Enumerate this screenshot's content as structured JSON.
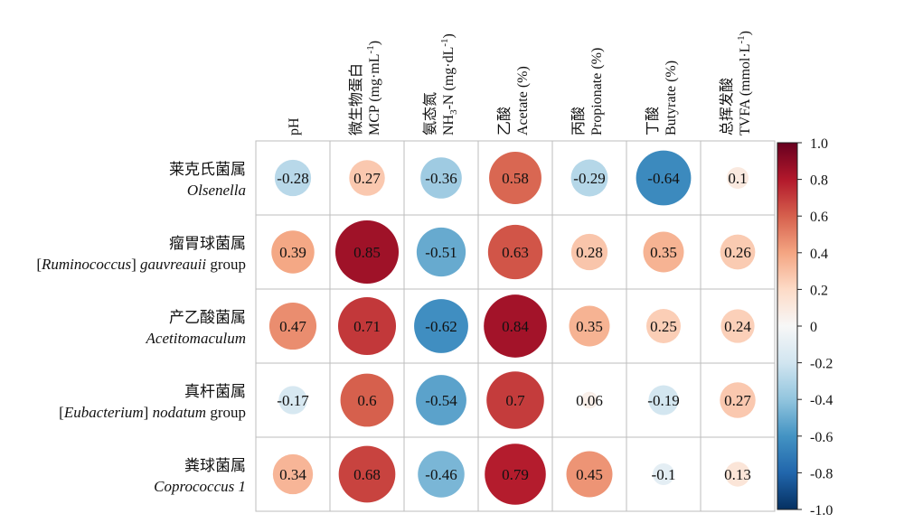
{
  "chart_data": {
    "type": "heatmap",
    "style": "correlation circles (size and color proportional to r)",
    "columns": [
      {
        "line1": "pH",
        "line2": "",
        "sup1": "",
        "sub2": "",
        "tail2": "",
        "sup2": "",
        "close2": ""
      },
      {
        "line1": "微生物蛋白",
        "line2": "MCP (mg·mL",
        "sup2": "-1",
        "close2": ")",
        "sub2": "",
        "tail2": "",
        "sup1": ""
      },
      {
        "line1": "氨态氮",
        "line2": "NH",
        "sub2": "3",
        "tail2": "-N (mg·dL",
        "sup2": "-1",
        "close2": ")",
        "sup1": ""
      },
      {
        "line1": "乙酸",
        "line2": "Acetate (%)",
        "sub2": "",
        "tail2": "",
        "sup2": "",
        "close2": "",
        "sup1": ""
      },
      {
        "line1": "丙酸",
        "line2": "Propionate (%)",
        "sub2": "",
        "tail2": "",
        "sup2": "",
        "close2": "",
        "sup1": ""
      },
      {
        "line1": "丁酸",
        "line2": "Butyrate (%)",
        "sub2": "",
        "tail2": "",
        "sup2": "",
        "close2": "",
        "sup1": ""
      },
      {
        "line1": "总挥发酸",
        "line2": "TVFA (mmol·L",
        "sup2": "-1",
        "close2": ")",
        "sub2": "",
        "tail2": "",
        "sup1": ""
      }
    ],
    "rows": [
      {
        "cn": "莱克氏菌属",
        "en": [
          {
            "t": "Olsenella",
            "i": true
          }
        ]
      },
      {
        "cn": "瘤胃球菌属",
        "en": [
          {
            "t": "[",
            "i": false
          },
          {
            "t": "Ruminococcus",
            "i": true
          },
          {
            "t": "] ",
            "i": false
          },
          {
            "t": "gauvreauii",
            "i": true
          },
          {
            "t": " group",
            "i": false
          }
        ]
      },
      {
        "cn": "产乙酸菌属",
        "en": [
          {
            "t": "Acetitomaculum",
            "i": true
          }
        ]
      },
      {
        "cn": "真杆菌属",
        "en": [
          {
            "t": "[",
            "i": false
          },
          {
            "t": "Eubacterium",
            "i": true
          },
          {
            "t": "] ",
            "i": false
          },
          {
            "t": "nodatum",
            "i": true
          },
          {
            "t": " group",
            "i": false
          }
        ]
      },
      {
        "cn": "粪球菌属",
        "en": [
          {
            "t": "Coprococcus 1",
            "i": true
          }
        ]
      }
    ],
    "values": [
      [
        -0.28,
        0.27,
        -0.36,
        0.58,
        -0.29,
        -0.64,
        0.1
      ],
      [
        0.39,
        0.85,
        -0.51,
        0.63,
        0.28,
        0.35,
        0.26
      ],
      [
        0.47,
        0.71,
        -0.62,
        0.84,
        0.35,
        0.25,
        0.24
      ],
      [
        -0.17,
        0.6,
        -0.54,
        0.7,
        0.06,
        -0.19,
        0.27
      ],
      [
        0.34,
        0.68,
        -0.46,
        0.79,
        0.45,
        -0.1,
        0.13
      ]
    ],
    "value_labels": [
      [
        "-0.28",
        "0.27",
        "-0.36",
        "0.58",
        "-0.29",
        "-0.64",
        "0.1"
      ],
      [
        "0.39",
        "0.85",
        "-0.51",
        "0.63",
        "0.28",
        "0.35",
        "0.26"
      ],
      [
        "0.47",
        "0.71",
        "-0.62",
        "0.84",
        "0.35",
        "0.25",
        "0.24"
      ],
      [
        "-0.17",
        "0.6",
        "-0.54",
        "0.7",
        "0.06",
        "-0.19",
        "0.27"
      ],
      [
        "0.34",
        "0.68",
        "-0.46",
        "0.79",
        "0.45",
        "-0.1",
        "0.13"
      ]
    ],
    "colorbar": {
      "range": [
        -1.0,
        1.0
      ],
      "ticks": [
        "1.0",
        "0.8",
        "0.6",
        "0.4",
        "0.2",
        "0",
        "-0.2",
        "-0.4",
        "-0.6",
        "-0.8",
        "-1.0"
      ],
      "colors": [
        "#67001f",
        "#b2182b",
        "#d6604d",
        "#f4a582",
        "#fddbc7",
        "#f7f7f7",
        "#d1e5f0",
        "#92c5de",
        "#4393c3",
        "#2166ac",
        "#053061"
      ]
    }
  }
}
